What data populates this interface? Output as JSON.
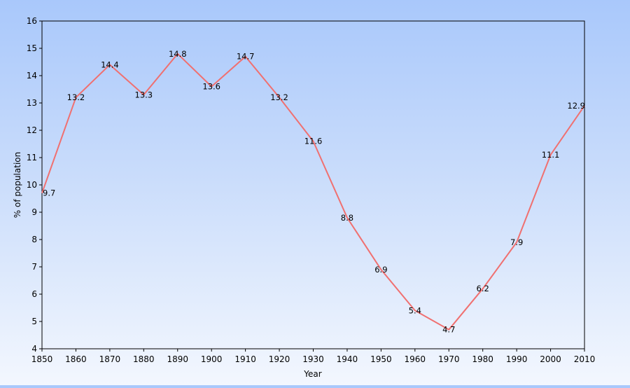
{
  "chart_data": {
    "type": "line",
    "title": "",
    "xlabel": "Year",
    "ylabel": "% of population",
    "x": [
      1850,
      1860,
      1870,
      1880,
      1890,
      1900,
      1910,
      1920,
      1930,
      1940,
      1950,
      1960,
      1970,
      1980,
      1990,
      2000,
      2010
    ],
    "series": [
      {
        "values": [
          9.7,
          13.2,
          14.4,
          13.3,
          14.8,
          13.6,
          14.7,
          13.2,
          11.6,
          8.8,
          6.9,
          5.4,
          4.7,
          6.2,
          7.9,
          11.1,
          12.9
        ],
        "labels": [
          "9.7",
          "13.2",
          "14.4",
          "13.3",
          "14.8",
          "13.6",
          "14.7",
          "13.2",
          "11.6",
          "8.8",
          "6.9",
          "5.4",
          "4.7",
          "6.2",
          "7.9",
          "11.1",
          "12.9"
        ],
        "color": "#f07070"
      }
    ],
    "xticks": [
      "1850",
      "1860",
      "1870",
      "1880",
      "1890",
      "1900",
      "1910",
      "1920",
      "1930",
      "1940",
      "1950",
      "1960",
      "1970",
      "1980",
      "1990",
      "2000",
      "2010"
    ],
    "yticks": [
      "4",
      "5",
      "6",
      "7",
      "8",
      "9",
      "10",
      "11",
      "12",
      "13",
      "14",
      "15",
      "16"
    ],
    "xlim": [
      1850,
      2010
    ],
    "ylim": [
      4,
      16
    ],
    "grid": false,
    "legend": "none"
  }
}
